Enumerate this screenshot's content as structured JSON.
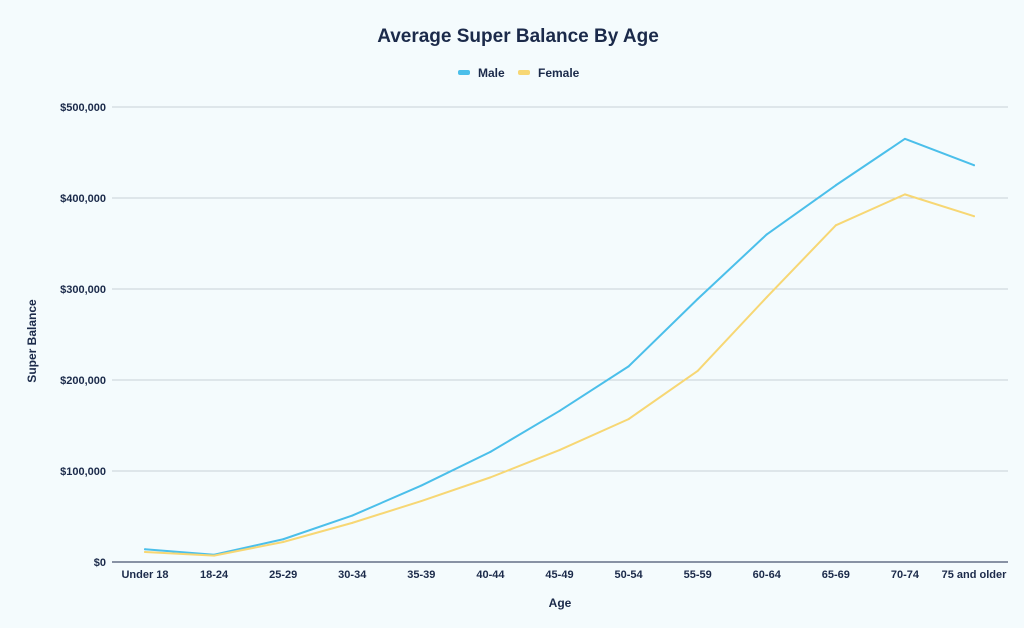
{
  "chart_data": {
    "type": "line",
    "title": "Average Super Balance By Age",
    "xlabel": "Age",
    "ylabel": "Super Balance",
    "categories": [
      "Under 18",
      "18-24",
      "25-29",
      "30-34",
      "35-39",
      "40-44",
      "45-49",
      "50-54",
      "55-59",
      "60-64",
      "65-69",
      "70-74",
      "75 and older"
    ],
    "series": [
      {
        "name": "Male",
        "color": "#4bbfea",
        "values": [
          14000,
          8000,
          25000,
          51000,
          84000,
          121000,
          166000,
          215000,
          289000,
          360000,
          414000,
          465000,
          436000
        ]
      },
      {
        "name": "Female",
        "color": "#f7d774",
        "values": [
          11000,
          7000,
          22000,
          43000,
          67000,
          93000,
          123000,
          157000,
          210000,
          291000,
          370000,
          404000,
          380000
        ]
      }
    ],
    "ylim": [
      0,
      500000
    ],
    "yticks": [
      0,
      100000,
      200000,
      300000,
      400000,
      500000
    ],
    "ytick_labels": [
      "$0",
      "$100,000",
      "$200,000",
      "$300,000",
      "$400,000",
      "$500,000"
    ],
    "grid": true,
    "legend_position": "top-center"
  }
}
